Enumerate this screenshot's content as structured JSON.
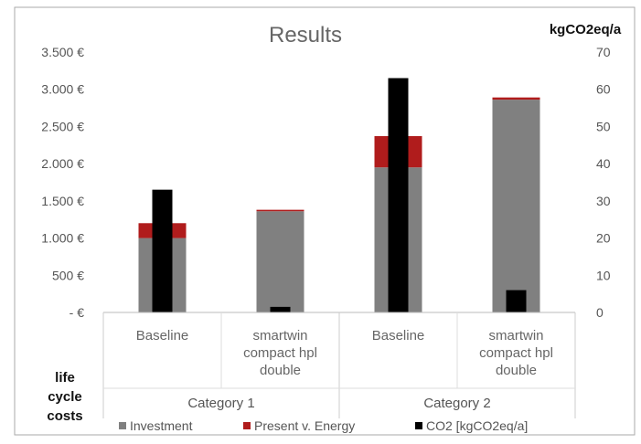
{
  "chart_data": {
    "type": "bar",
    "title": "Results",
    "ylabel": "life cycle costs",
    "y2label": "kgCO2eq/a",
    "ylim": [
      0,
      3500
    ],
    "y2lim": [
      0,
      70
    ],
    "yticks": [
      "3.500 €",
      "3.000 €",
      "2.500 €",
      "2.000 €",
      "1.500 €",
      "1.000 €",
      "500 €",
      "-  €"
    ],
    "y2ticks": [
      "70",
      "60",
      "50",
      "40",
      "30",
      "20",
      "10",
      "0"
    ],
    "categories": [
      {
        "lines": [
          "Baseline"
        ],
        "group": "Category 1"
      },
      {
        "lines": [
          "smartwin",
          "compact hpl",
          "double"
        ],
        "group": "Category 1"
      },
      {
        "lines": [
          "Baseline"
        ],
        "group": "Category 2"
      },
      {
        "lines": [
          "smartwin",
          "compact hpl",
          "double"
        ],
        "group": "Category 2"
      }
    ],
    "groups": [
      "Category 1",
      "Category 2"
    ],
    "series": [
      {
        "name": "Investment",
        "color": "#808080",
        "axis": "left",
        "stacked": true,
        "values": [
          1000,
          1360,
          1950,
          2860
        ]
      },
      {
        "name": "Present v. Energy",
        "color": "#b01c1c",
        "axis": "left",
        "stacked": true,
        "values": [
          200,
          20,
          420,
          30
        ]
      },
      {
        "name": "CO2 [kgCO2eq/a]",
        "color": "#000000",
        "axis": "right",
        "stacked": false,
        "values": [
          33,
          1.5,
          63,
          6
        ]
      }
    ],
    "grid": false,
    "legend": "bottom"
  }
}
